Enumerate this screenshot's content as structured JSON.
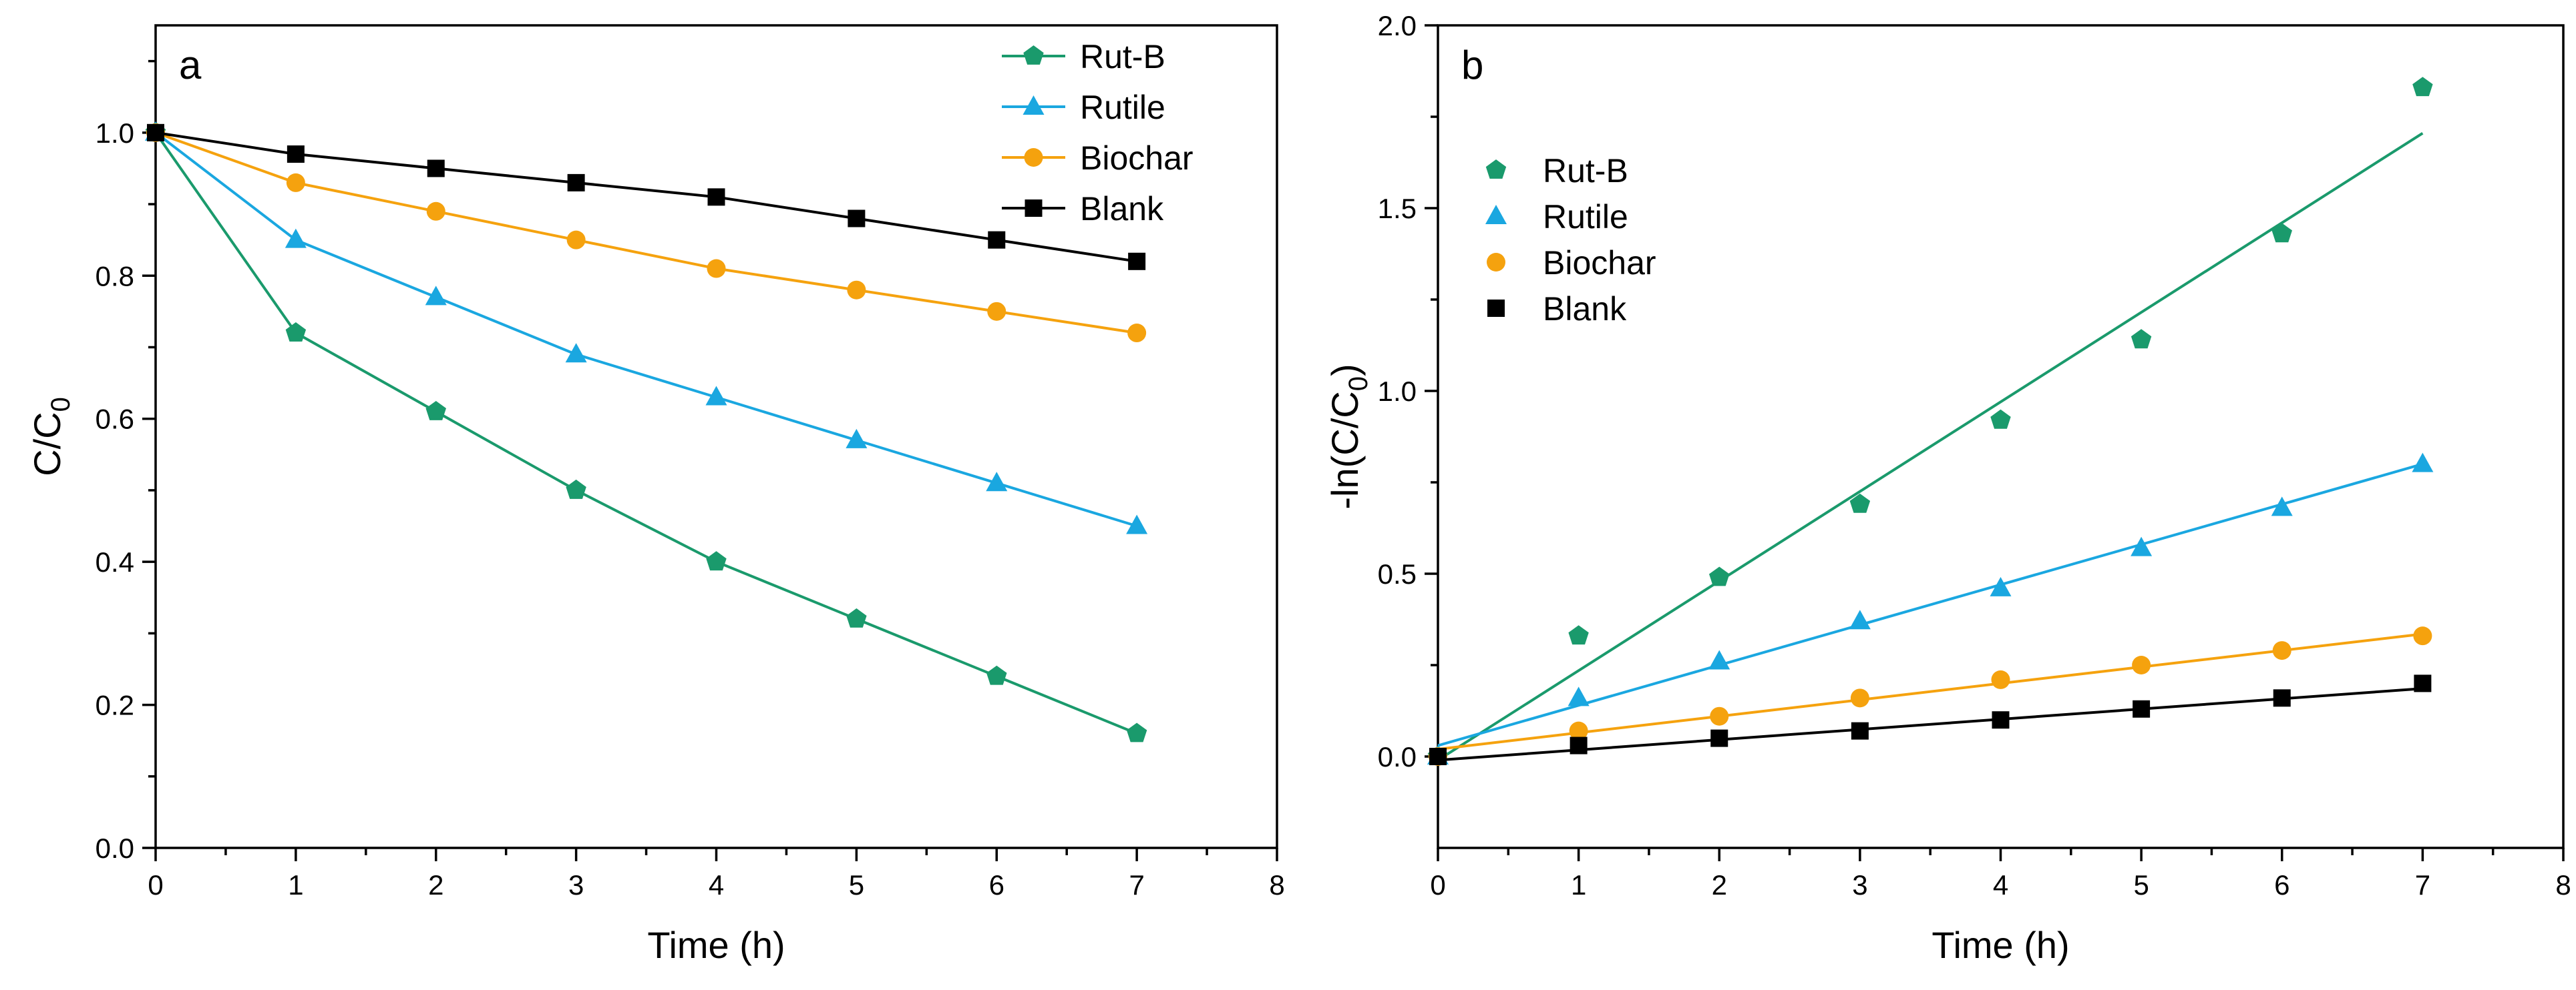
{
  "colors": {
    "rutb": "#1a9a6c",
    "rutile": "#1aa7e0",
    "biochar": "#f5a20e",
    "blank": "#000000"
  },
  "chart_data": [
    {
      "type": "line",
      "panel_label": "a",
      "xlabel": "Time (h)",
      "ylabel_main": "C/C",
      "ylabel_sub": "0",
      "xlim": [
        0,
        8
      ],
      "ylim": [
        0.0,
        1.15
      ],
      "xticks": [
        0,
        1,
        2,
        3,
        4,
        5,
        6,
        7,
        8
      ],
      "xtick_labels": [
        "0",
        "1",
        "2",
        "3",
        "4",
        "5",
        "6",
        "7",
        "8"
      ],
      "yticks": [
        0.0,
        0.2,
        0.4,
        0.6,
        0.8,
        1.0
      ],
      "ytick_labels": [
        "0.0",
        "0.2",
        "0.4",
        "0.6",
        "0.8",
        "1.0"
      ],
      "legend_position": "top-right",
      "x": [
        0,
        1,
        2,
        3,
        4,
        5,
        6,
        7
      ],
      "series": [
        {
          "name": "Rut-B",
          "color_key": "rutb",
          "marker": "pentagon",
          "values": [
            1.0,
            0.72,
            0.61,
            0.5,
            0.4,
            0.32,
            0.24,
            0.16
          ]
        },
        {
          "name": "Rutile",
          "color_key": "rutile",
          "marker": "triangle",
          "values": [
            1.0,
            0.85,
            0.77,
            0.69,
            0.63,
            0.57,
            0.51,
            0.45
          ]
        },
        {
          "name": "Biochar",
          "color_key": "biochar",
          "marker": "circle",
          "values": [
            1.0,
            0.93,
            0.89,
            0.85,
            0.81,
            0.78,
            0.75,
            0.72
          ]
        },
        {
          "name": "Blank",
          "color_key": "blank",
          "marker": "square",
          "values": [
            1.0,
            0.97,
            0.95,
            0.93,
            0.91,
            0.88,
            0.85,
            0.82
          ]
        }
      ]
    },
    {
      "type": "scatter",
      "panel_label": "b",
      "xlabel": "Time (h)",
      "ylabel_main": "-ln(C/C",
      "ylabel_sub": "0",
      "ylabel_tail": ")",
      "xlim": [
        0,
        8
      ],
      "ylim": [
        -0.25,
        2.0
      ],
      "xticks": [
        0,
        1,
        2,
        3,
        4,
        5,
        6,
        7,
        8
      ],
      "xtick_labels": [
        "0",
        "1",
        "2",
        "3",
        "4",
        "5",
        "6",
        "7",
        "8"
      ],
      "yticks": [
        0.0,
        0.5,
        1.0,
        1.5,
        2.0
      ],
      "ytick_labels": [
        "0.0",
        "0.5",
        "1.0",
        "1.5",
        "2.0"
      ],
      "legend_position": "top-left",
      "x": [
        0,
        1,
        2,
        3,
        4,
        5,
        6,
        7
      ],
      "series": [
        {
          "name": "Rut-B",
          "color_key": "rutb",
          "marker": "pentagon",
          "values": [
            0.0,
            0.33,
            0.49,
            0.69,
            0.92,
            1.14,
            1.43,
            1.83
          ],
          "fit": {
            "intercept": -0.01,
            "slope": 0.245
          }
        },
        {
          "name": "Rutile",
          "color_key": "rutile",
          "marker": "triangle",
          "values": [
            0.0,
            0.16,
            0.26,
            0.37,
            0.46,
            0.57,
            0.68,
            0.8
          ],
          "fit": {
            "intercept": 0.03,
            "slope": 0.11
          }
        },
        {
          "name": "Biochar",
          "color_key": "biochar",
          "marker": "circle",
          "values": [
            0.0,
            0.07,
            0.11,
            0.16,
            0.21,
            0.25,
            0.29,
            0.33
          ],
          "fit": {
            "intercept": 0.02,
            "slope": 0.045
          }
        },
        {
          "name": "Blank",
          "color_key": "blank",
          "marker": "square",
          "values": [
            0.0,
            0.03,
            0.05,
            0.07,
            0.1,
            0.13,
            0.16,
            0.2
          ],
          "fit": {
            "intercept": -0.01,
            "slope": 0.028
          }
        }
      ]
    }
  ]
}
